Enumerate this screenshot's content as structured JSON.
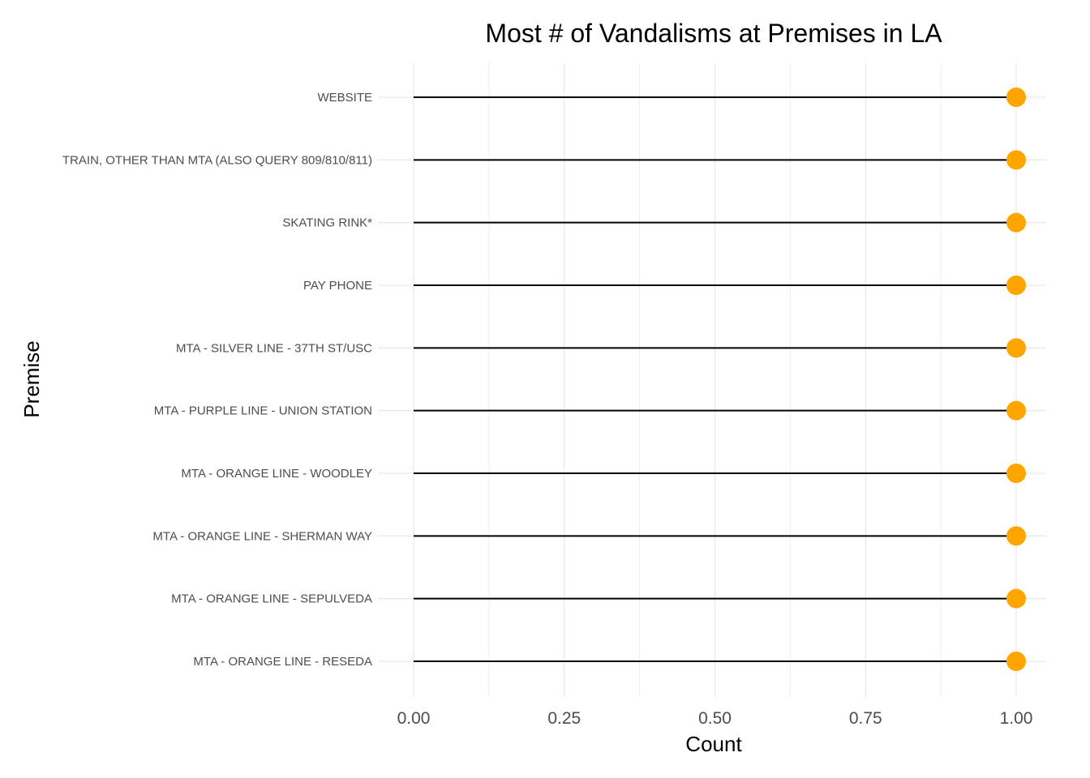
{
  "chart_data": {
    "type": "lollipop",
    "title": "Most # of Vandalisms at Premises in LA",
    "xlabel": "Count",
    "ylabel": "Premise",
    "xlim": [
      0,
      1
    ],
    "x_ticks": [
      "0.00",
      "0.25",
      "0.50",
      "0.75",
      "1.00"
    ],
    "x_tick_values": [
      0,
      0.25,
      0.5,
      0.75,
      1.0
    ],
    "categories": [
      "WEBSITE",
      "TRAIN, OTHER THAN MTA (ALSO QUERY 809/810/811)",
      "SKATING RINK*",
      "PAY PHONE",
      "MTA - SILVER LINE - 37TH ST/USC",
      "MTA - PURPLE LINE - UNION STATION",
      "MTA - ORANGE LINE - WOODLEY",
      "MTA - ORANGE LINE - SHERMAN WAY",
      "MTA - ORANGE LINE - SEPULVEDA",
      "MTA - ORANGE LINE - RESEDA"
    ],
    "values": [
      1,
      1,
      1,
      1,
      1,
      1,
      1,
      1,
      1,
      1
    ],
    "grid": true,
    "legend": "none",
    "colors": {
      "point": "#FFA500",
      "stem": "#000000"
    }
  }
}
